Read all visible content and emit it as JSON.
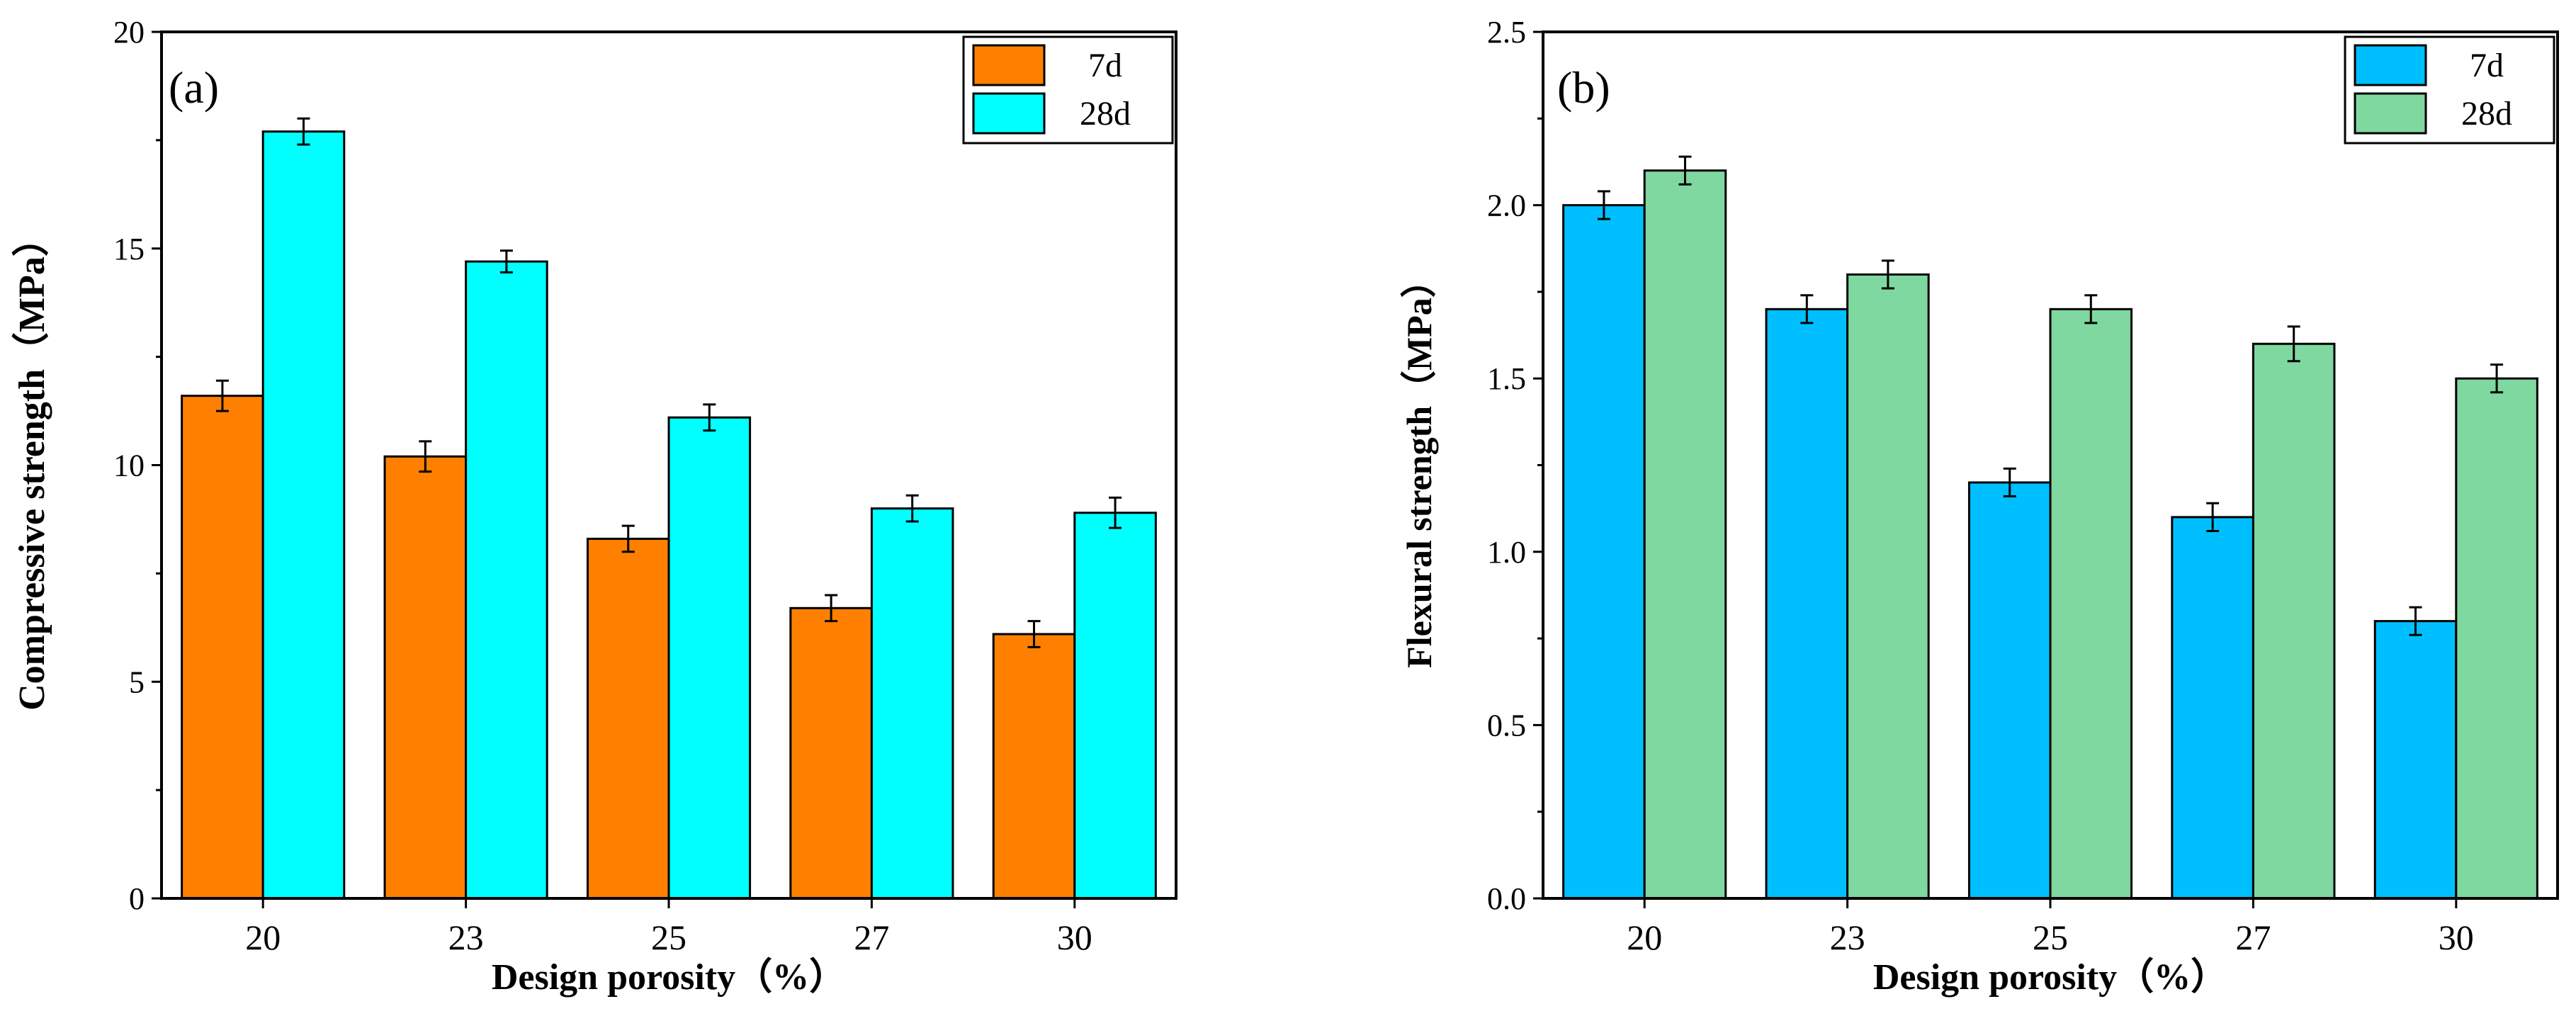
{
  "chart_data": [
    {
      "type": "bar",
      "panel_label": "(a)",
      "categories": [
        "20",
        "23",
        "25",
        "27",
        "30"
      ],
      "series": [
        {
          "name": "7d",
          "color": "#FF8000",
          "values": [
            11.6,
            10.2,
            8.3,
            6.7,
            6.1
          ],
          "errors": [
            0.35,
            0.35,
            0.3,
            0.3,
            0.3
          ]
        },
        {
          "name": "28d",
          "color": "#00FFFF",
          "values": [
            17.7,
            14.7,
            11.1,
            9.0,
            8.9
          ],
          "errors": [
            0.3,
            0.25,
            0.3,
            0.3,
            0.35
          ]
        }
      ],
      "xlabel": "Design porosity（%）",
      "ylabel": "Compressive strength（MPa）",
      "ylim": [
        0,
        20
      ],
      "yticks": [
        0,
        5,
        10,
        15,
        20
      ],
      "ytick_labels": [
        "0",
        "5",
        "10",
        "15",
        "20"
      ],
      "legend_position": "top-right",
      "grid": false
    },
    {
      "type": "bar",
      "panel_label": "(b)",
      "categories": [
        "20",
        "23",
        "25",
        "27",
        "30"
      ],
      "series": [
        {
          "name": "7d",
          "color": "#00BFFF",
          "values": [
            2.0,
            1.7,
            1.2,
            1.1,
            0.8
          ],
          "errors": [
            0.04,
            0.04,
            0.04,
            0.04,
            0.04
          ]
        },
        {
          "name": "28d",
          "color": "#7FD8A0",
          "values": [
            2.1,
            1.8,
            1.7,
            1.6,
            1.5
          ],
          "errors": [
            0.04,
            0.04,
            0.04,
            0.05,
            0.04
          ]
        }
      ],
      "xlabel": "Design porosity（%）",
      "ylabel": "Flexural strength（MPa）",
      "ylim": [
        0,
        2.5
      ],
      "yticks": [
        0,
        0.5,
        1.0,
        1.5,
        2.0,
        2.5
      ],
      "ytick_labels": [
        "0.0",
        "0.5",
        "1.0",
        "1.5",
        "2.0",
        "2.5"
      ],
      "legend_position": "top-right",
      "grid": false
    }
  ]
}
